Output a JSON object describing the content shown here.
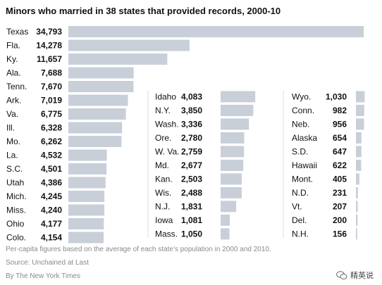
{
  "title": "Minors who married in 38 states that provided records, 2000-10",
  "footnote": "Per-capita figures based on the average of each state’s population in 2000 and 2010.",
  "source": "Source: Unchained at Last",
  "credit": "By The New York Times",
  "watermark": "精英说",
  "colors": {
    "bar": "#c9cfd8",
    "text": "#111111",
    "note": "#8a8a8a"
  },
  "chart_data": [
    {
      "type": "bar",
      "orientation": "horizontal",
      "categories": [
        "Texas",
        "Fla.",
        "Ky.",
        "Ala.",
        "Tenn.",
        "Ark.",
        "Va.",
        "Ill.",
        "Mo.",
        "La.",
        "S.C.",
        "Utah",
        "Mich.",
        "Miss.",
        "Ohio",
        "Colo."
      ],
      "values": [
        34793,
        14278,
        11657,
        7688,
        7670,
        7019,
        6775,
        6328,
        6262,
        4532,
        4501,
        4386,
        4245,
        4240,
        4177,
        4154
      ],
      "labels": [
        "34,793",
        "14,278",
        "11,657",
        "7,688",
        "7,670",
        "7,019",
        "6,775",
        "6,328",
        "6,262",
        "4,532",
        "4,501",
        "4,386",
        "4,245",
        "4,240",
        "4,177",
        "4,154"
      ]
    },
    {
      "type": "bar",
      "orientation": "horizontal",
      "categories": [
        "Idaho",
        "N.Y.",
        "Wash.",
        "Ore.",
        "W. Va.",
        "Md.",
        "Kan.",
        "Wis.",
        "N.J.",
        "Iowa",
        "Mass."
      ],
      "values": [
        4083,
        3850,
        3336,
        2780,
        2759,
        2677,
        2503,
        2488,
        1831,
        1081,
        1050
      ],
      "labels": [
        "4,083",
        "3,850",
        "3,336",
        "2,780",
        "2,759",
        "2,677",
        "2,503",
        "2,488",
        "1,831",
        "1,081",
        "1,050"
      ]
    },
    {
      "type": "bar",
      "orientation": "horizontal",
      "categories": [
        "Wyo.",
        "Conn.",
        "Neb.",
        "Alaska",
        "S.D.",
        "Hawaii",
        "Mont.",
        "N.D.",
        "Vt.",
        "Del.",
        "N.H."
      ],
      "values": [
        1030,
        982,
        956,
        654,
        647,
        622,
        405,
        231,
        207,
        200,
        156
      ],
      "labels": [
        "1,030",
        "982",
        "956",
        "654",
        "647",
        "622",
        "405",
        "231",
        "207",
        "200",
        "156"
      ]
    }
  ]
}
